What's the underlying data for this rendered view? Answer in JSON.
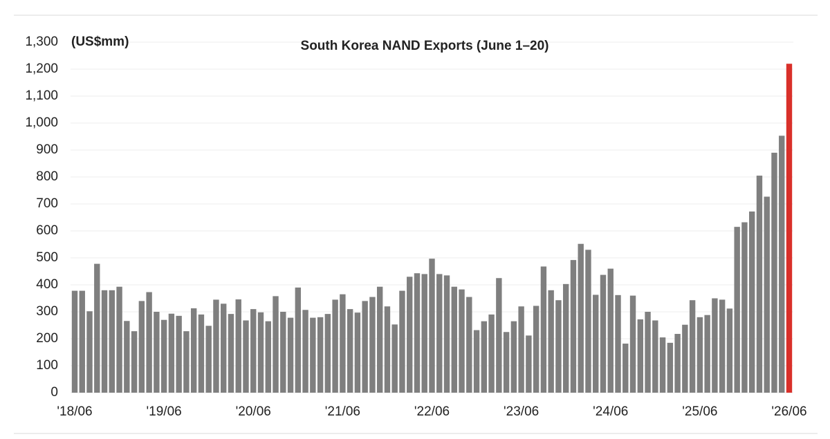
{
  "chart_data": {
    "type": "bar",
    "title": "South Korea NAND Exports (June 1–20)",
    "y_label": "(US$mm)",
    "categories": [
      "'18/06",
      null,
      null,
      null,
      null,
      null,
      null,
      null,
      null,
      null,
      null,
      null,
      "'19/06",
      null,
      null,
      null,
      null,
      null,
      null,
      null,
      null,
      null,
      null,
      null,
      "'20/06",
      null,
      null,
      null,
      null,
      null,
      null,
      null,
      null,
      null,
      null,
      null,
      "'21/06",
      null,
      null,
      null,
      null,
      null,
      null,
      null,
      null,
      null,
      null,
      null,
      "'22/06",
      null,
      null,
      null,
      null,
      null,
      null,
      null,
      null,
      null,
      null,
      null,
      "'23/06",
      null,
      null,
      null,
      null,
      null,
      null,
      null,
      null,
      null,
      null,
      null,
      "'24/06",
      null,
      null,
      null,
      null,
      null,
      null,
      null,
      null,
      null,
      null,
      null,
      "'25/06",
      null,
      null,
      null,
      null,
      null,
      null,
      null,
      null,
      null,
      null,
      null,
      "'26/06"
    ],
    "values": [
      378,
      378,
      302,
      478,
      380,
      380,
      393,
      266,
      228,
      340,
      373,
      300,
      270,
      293,
      285,
      228,
      313,
      290,
      248,
      345,
      330,
      292,
      346,
      268,
      310,
      298,
      265,
      358,
      300,
      278,
      390,
      307,
      278,
      280,
      292,
      345,
      365,
      310,
      297,
      340,
      355,
      393,
      320,
      253,
      378,
      430,
      443,
      440,
      497,
      440,
      435,
      393,
      383,
      355,
      232,
      265,
      290,
      425,
      225,
      265,
      320,
      212,
      322,
      468,
      380,
      343,
      403,
      492,
      552,
      530,
      363,
      437,
      460,
      362,
      182,
      360,
      272,
      300,
      268,
      205,
      185,
      218,
      252,
      343,
      280,
      288,
      350,
      345,
      312,
      615,
      632,
      672,
      805,
      727,
      890,
      953,
      1220
    ],
    "color": "#7f7f7f",
    "highlight_color": "#d9302a",
    "ylim": [
      0,
      1300
    ],
    "yticks": [
      0,
      100,
      200,
      300,
      400,
      500,
      600,
      700,
      800,
      900,
      {
        "value": 1000,
        "label": "1,000"
      },
      {
        "value": 1100,
        "label": "1,100"
      },
      {
        "value": 1200,
        "label": "1,200"
      },
      {
        "value": 1300,
        "label": "1,300"
      }
    ],
    "grid": true
  }
}
